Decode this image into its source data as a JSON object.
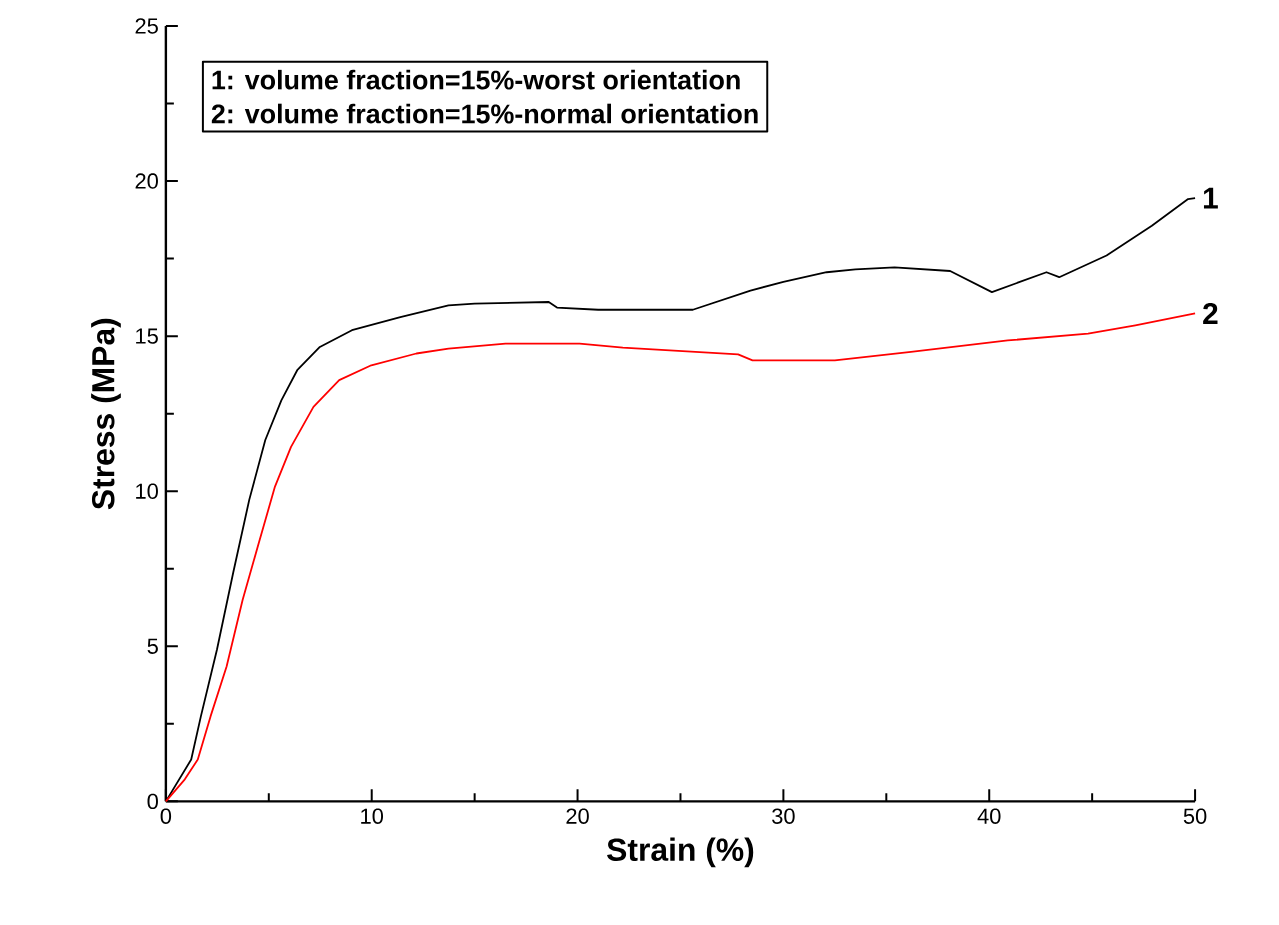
{
  "chart_data": {
    "type": "line",
    "xlabel": "Strain (%)",
    "ylabel": "Stress (MPa)",
    "annotations": [
      "1: volume fraction=15%-worst orientation",
      "2: volume fraction=15%-normal orientation"
    ],
    "xlim": [
      0,
      50
    ],
    "ylim": [
      0,
      25
    ],
    "xticks": [
      0,
      10,
      20,
      30,
      40,
      50
    ],
    "yticks": [
      0,
      5,
      10,
      15,
      20,
      25
    ],
    "grid": false,
    "legend": false,
    "marker": "none",
    "line_style": "solid",
    "series": [
      {
        "name": "1",
        "color": "#000000",
        "x": [
          0,
          1.23,
          1.7,
          2.48,
          3.27,
          4.05,
          4.83,
          5.61,
          6.38,
          7.48,
          9.04,
          11.39,
          13.73,
          15,
          18.6,
          19.0,
          21,
          25.6,
          28.4,
          30,
          32.1,
          33.5,
          35.4,
          38.1,
          40.13,
          42.78,
          43.4,
          45.7,
          47.9,
          49.66,
          50
        ],
        "values": [
          0,
          1.35,
          2.74,
          4.89,
          7.37,
          9.72,
          11.65,
          12.93,
          13.9,
          14.65,
          15.19,
          15.61,
          15.99,
          16.05,
          16.1,
          15.92,
          15.85,
          15.85,
          16.47,
          16.75,
          17.06,
          17.15,
          17.22,
          17.1,
          16.42,
          17.06,
          16.9,
          17.6,
          18.56,
          19.42,
          19.45
        ]
      },
      {
        "name": "2",
        "color": "#ff0000",
        "x": [
          0,
          0.92,
          1.55,
          2.17,
          2.95,
          3.73,
          4.51,
          5.3,
          6.08,
          7.17,
          8.42,
          9.98,
          12.17,
          13.73,
          16.5,
          20.1,
          22.2,
          25.0,
          27.8,
          28.5,
          32.5,
          36.2,
          40.9,
          44.8,
          47.1,
          50
        ],
        "values": [
          0,
          0.71,
          1.35,
          2.74,
          4.35,
          6.5,
          8.32,
          10.15,
          11.43,
          12.72,
          13.58,
          14.06,
          14.44,
          14.6,
          14.76,
          14.76,
          14.63,
          14.52,
          14.41,
          14.22,
          14.22,
          14.49,
          14.86,
          15.08,
          15.35,
          15.73
        ]
      }
    ]
  }
}
